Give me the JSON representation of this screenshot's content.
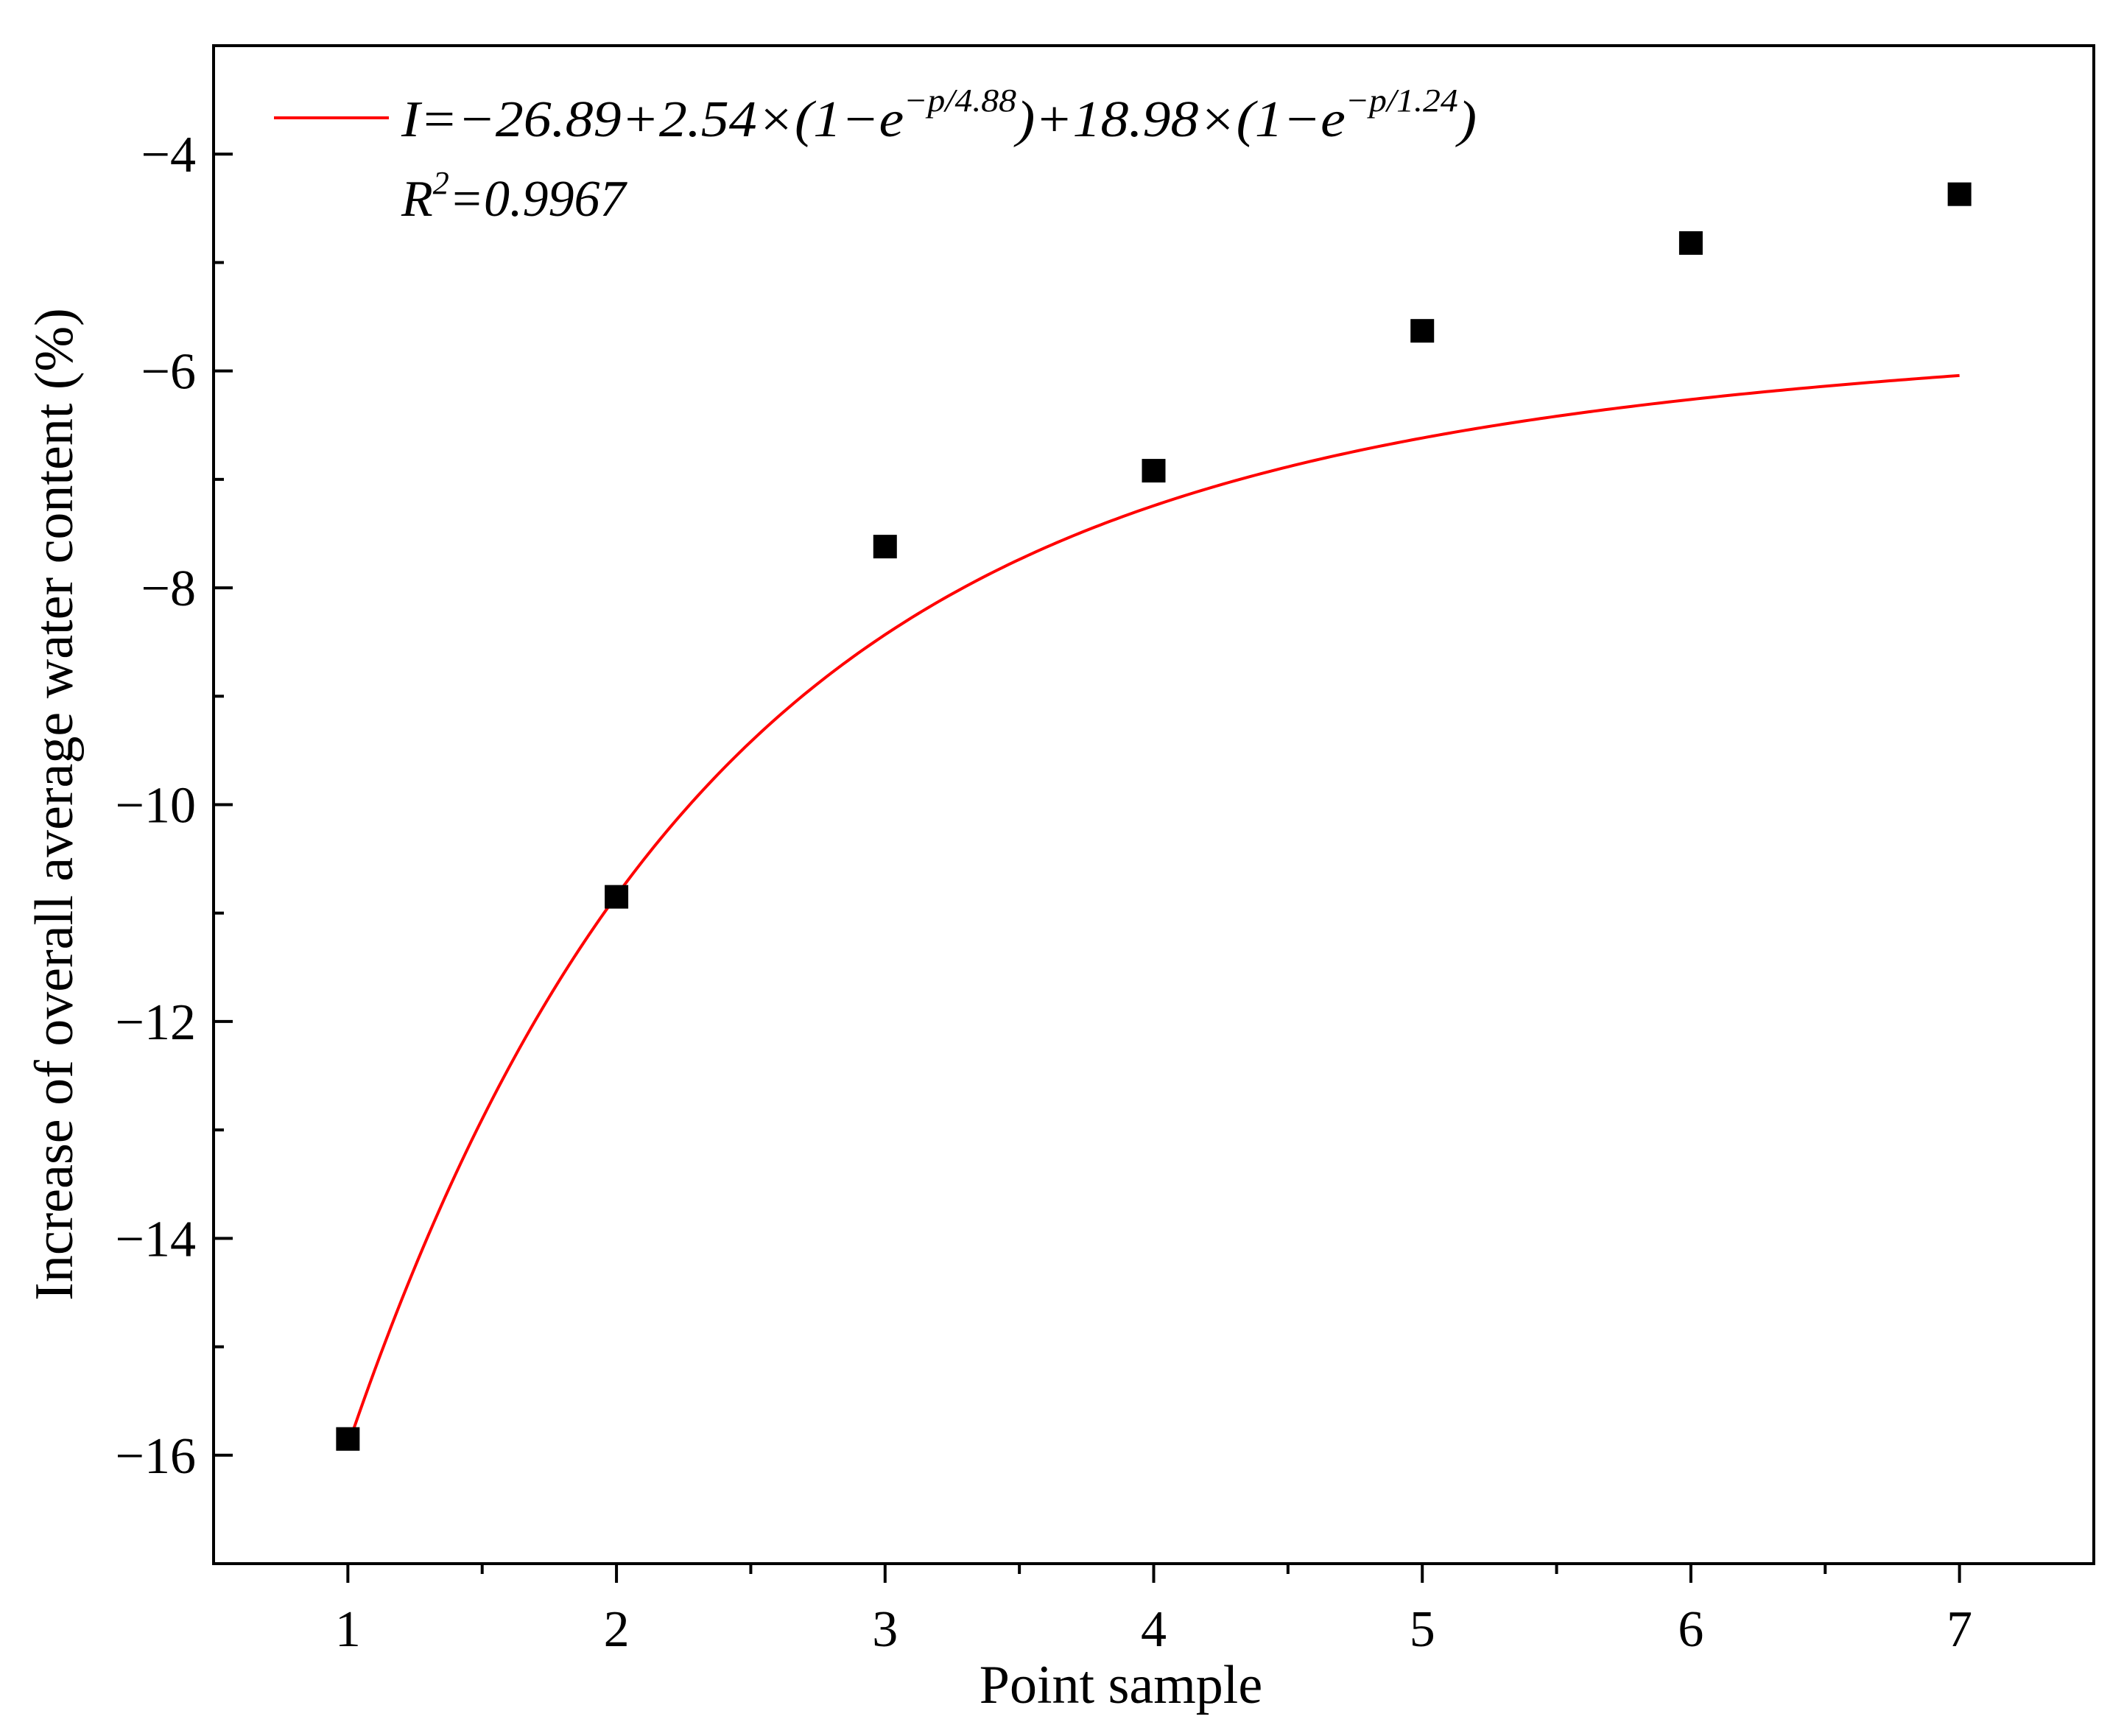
{
  "chart_data": {
    "type": "scatter",
    "title": "",
    "xlabel": "Point sample",
    "ylabel": "Increase of overall average water content (%)",
    "xlim": [
      0.5,
      7.5
    ],
    "ylim": [
      -17,
      -3
    ],
    "x_ticks": [
      1,
      2,
      3,
      4,
      5,
      6,
      7
    ],
    "x_tick_labels": [
      "1",
      "2",
      "3",
      "4",
      "5",
      "6",
      "7"
    ],
    "y_ticks": [
      -16,
      -14,
      -12,
      -10,
      -8,
      -6,
      -4
    ],
    "y_tick_labels": [
      "−16",
      "−14",
      "−12",
      "−10",
      "−8",
      "−6",
      "−4"
    ],
    "grid": false,
    "series": [
      {
        "kind": "scatter",
        "marker": "square",
        "color": "#000000",
        "x": [
          1,
          2,
          3,
          4,
          5,
          6,
          7
        ],
        "y": [
          -15.85,
          -10.85,
          -7.62,
          -6.92,
          -5.63,
          -4.82,
          -4.37
        ]
      },
      {
        "kind": "fit-line",
        "color": "#ff0000",
        "model": {
          "y0": -26.89,
          "a1": 2.54,
          "t1": 4.88,
          "a2": 18.98,
          "t2": 1.24
        },
        "x_range": [
          1,
          7
        ]
      }
    ],
    "legend": {
      "position": "top-left",
      "equation": {
        "lhs": "I=",
        "part1": "−26.89+2.54×(1−e",
        "sup1": "−p/4.88",
        "part2": ")+18.98×(1−e",
        "sup2": "−p/1.24",
        "part3": ")"
      },
      "r2": {
        "base": "R",
        "sup": "2",
        "rest": "=0.9967"
      }
    }
  }
}
